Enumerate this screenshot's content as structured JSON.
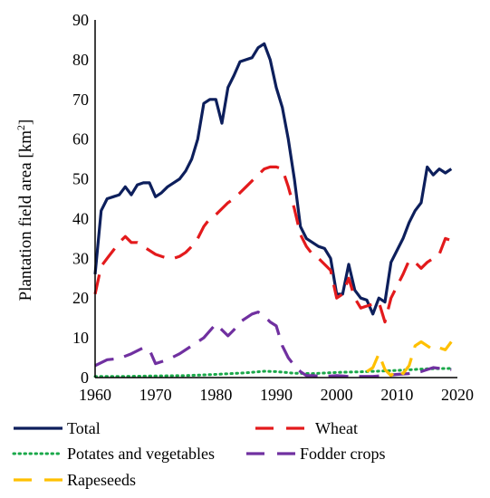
{
  "chart_data": {
    "type": "line",
    "title": "",
    "xlabel": "",
    "ylabel": "Plantation field area [km",
    "ylabel_sup": "2",
    "ylabel_close": "]",
    "xlim": [
      1960,
      2020
    ],
    "ylim": [
      0,
      90
    ],
    "x_ticks": [
      1960,
      1970,
      1980,
      1990,
      2000,
      2010,
      2020
    ],
    "y_ticks": [
      0,
      10,
      20,
      30,
      40,
      50,
      60,
      70,
      80,
      90
    ],
    "grid": false,
    "legend_position": "bottom",
    "series": [
      {
        "name": "Total",
        "color": "#0d1f5c",
        "style": "solid",
        "x": [
          1960,
          1961,
          1962,
          1963,
          1964,
          1965,
          1966,
          1967,
          1968,
          1969,
          1970,
          1971,
          1972,
          1973,
          1974,
          1975,
          1976,
          1977,
          1978,
          1979,
          1980,
          1981,
          1982,
          1983,
          1984,
          1985,
          1986,
          1987,
          1988,
          1989,
          1990,
          1991,
          1992,
          1993,
          1994,
          1995,
          1996,
          1997,
          1998,
          1999,
          2000,
          2001,
          2002,
          2003,
          2004,
          2005,
          2006,
          2007,
          2008,
          2009,
          2010,
          2011,
          2012,
          2013,
          2014,
          2015,
          2016,
          2017,
          2018,
          2019
        ],
        "y": [
          26,
          42,
          45,
          45.5,
          46,
          48,
          46,
          48.5,
          49,
          49,
          45.5,
          46.5,
          48,
          49,
          50,
          52,
          55,
          60,
          69,
          70,
          70,
          64,
          73,
          76,
          79.5,
          80,
          80.5,
          83,
          84,
          80,
          73,
          68,
          60,
          50,
          38,
          35,
          34,
          33,
          32.5,
          30,
          21,
          21,
          28.5,
          22,
          20,
          19.5,
          16,
          20,
          19,
          29,
          32,
          35,
          39,
          42,
          44,
          53,
          51,
          52.5,
          51.5,
          52.5
        ]
      },
      {
        "name": "Wheat",
        "color": "#e31a1c",
        "style": "dashed",
        "x": [
          1960,
          1961,
          1962,
          1963,
          1964,
          1965,
          1966,
          1967,
          1968,
          1969,
          1970,
          1971,
          1972,
          1973,
          1974,
          1975,
          1976,
          1977,
          1978,
          1979,
          1980,
          1981,
          1982,
          1983,
          1984,
          1985,
          1986,
          1987,
          1988,
          1989,
          1990,
          1991,
          1992,
          1993,
          1994,
          1995,
          1996,
          1997,
          1998,
          1999,
          2000,
          2001,
          2002,
          2003,
          2004,
          2005,
          2006,
          2007,
          2008,
          2009,
          2010,
          2011,
          2012,
          2013,
          2014,
          2015,
          2016,
          2017,
          2018,
          2019
        ],
        "y": [
          21,
          28,
          30,
          32,
          34,
          35.5,
          34,
          34,
          33,
          32,
          31,
          30.5,
          30,
          30,
          30.5,
          31.5,
          33,
          35,
          38,
          40,
          41,
          42.5,
          44,
          45,
          46.5,
          48,
          49.5,
          51,
          52.5,
          53,
          53,
          52.5,
          48,
          42.5,
          36,
          33,
          31,
          30,
          28.5,
          27,
          20,
          21,
          25,
          20,
          17.5,
          18,
          18.5,
          19,
          14,
          20,
          23,
          26,
          29.5,
          29,
          27.5,
          29,
          30,
          31,
          35,
          34.5
        ]
      },
      {
        "name": "Potates and vegetables",
        "color": "#1aa84a",
        "style": "dotted",
        "x": [
          1960,
          1965,
          1970,
          1975,
          1980,
          1985,
          1988,
          1990,
          1993,
          1996,
          2000,
          2005,
          2010,
          2015,
          2019
        ],
        "y": [
          0.3,
          0.3,
          0.4,
          0.5,
          0.8,
          1.2,
          1.6,
          1.5,
          1.1,
          1.0,
          1.3,
          1.5,
          1.8,
          2.2,
          2.3
        ]
      },
      {
        "name": "Fodder crops",
        "color": "#7030a0",
        "style": "dashed",
        "x": [
          1960,
          1962,
          1964,
          1966,
          1968,
          1969,
          1970,
          1972,
          1974,
          1976,
          1978,
          1980,
          1981,
          1982,
          1983,
          1984,
          1985,
          1986,
          1987,
          1988,
          1989,
          1990,
          1991,
          1992,
          1993,
          1994,
          1995,
          1996,
          1998,
          2000,
          2002,
          2004,
          2006,
          2008,
          2010,
          2012,
          2014,
          2016,
          2019
        ],
        "y": [
          3,
          4.5,
          4.8,
          6,
          7.5,
          7,
          3.5,
          4.5,
          6,
          8,
          10,
          13.5,
          12,
          10.5,
          12,
          14,
          15,
          16,
          16.5,
          15.5,
          14,
          13,
          8,
          5,
          3,
          1.5,
          0.5,
          0.5,
          0.3,
          0.5,
          0.3,
          0.3,
          0.3,
          0.5,
          0.8,
          1,
          1.5,
          2.5,
          2
        ]
      },
      {
        "name": "Rapeseeds",
        "color": "#ffc000",
        "style": "dashed",
        "x": [
          2005,
          2006,
          2007,
          2008,
          2009,
          2010,
          2011,
          2012,
          2013,
          2014,
          2015,
          2016,
          2017,
          2018,
          2019
        ],
        "y": [
          1.5,
          2.5,
          6,
          2,
          0.5,
          2,
          1,
          3,
          8,
          9,
          8,
          7,
          7.5,
          7,
          9
        ]
      }
    ]
  }
}
